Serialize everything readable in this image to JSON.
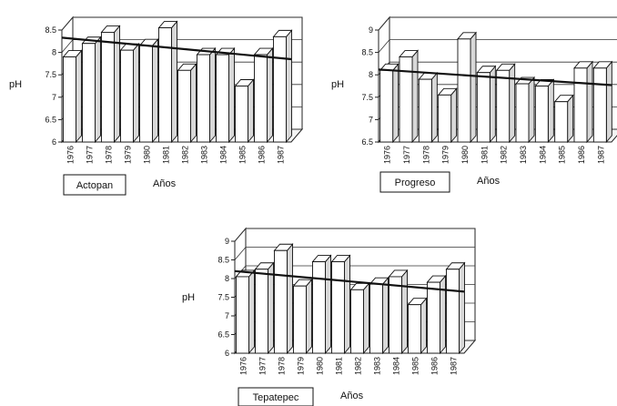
{
  "chart_data": [
    {
      "type": "bar",
      "station": "Actopan",
      "xlabel": "Años",
      "ylabel": "pH",
      "ylim": [
        6,
        8.5
      ],
      "yticks": [
        "6",
        "6.5",
        "7",
        "7.5",
        "8",
        "8.5"
      ],
      "categories": [
        "1976",
        "1977",
        "1978",
        "1979",
        "1980",
        "1981",
        "1982",
        "1983",
        "1984",
        "1985",
        "1986",
        "1987"
      ],
      "values": [
        7.9,
        8.2,
        8.45,
        8.05,
        8.15,
        8.55,
        7.6,
        7.95,
        7.95,
        7.25,
        7.95,
        8.35
      ],
      "trend": [
        8.33,
        7.85
      ],
      "grid": true
    },
    {
      "type": "bar",
      "station": "Progreso",
      "xlabel": "Años",
      "ylabel": "pH",
      "ylim": [
        6.5,
        9
      ],
      "yticks": [
        "6.5",
        "7",
        "7.5",
        "8",
        "8.5",
        "9"
      ],
      "categories": [
        "1976",
        "1977",
        "1978",
        "1979",
        "1980",
        "1981",
        "1982",
        "1983",
        "1984",
        "1985",
        "1986",
        "1987"
      ],
      "values": [
        8.1,
        8.4,
        7.9,
        7.55,
        8.8,
        8.05,
        8.1,
        7.8,
        7.75,
        7.4,
        8.15,
        8.15
      ],
      "trend": [
        8.12,
        7.77
      ],
      "grid": true
    },
    {
      "type": "bar",
      "station": "Tepatepec",
      "xlabel": "Años",
      "ylabel": "pH",
      "ylim": [
        6,
        9
      ],
      "yticks": [
        "6",
        "6.5",
        "7",
        "7.5",
        "8",
        "8.5",
        "9"
      ],
      "categories": [
        "1976",
        "1977",
        "1978",
        "1979",
        "1980",
        "1981",
        "1982",
        "1983",
        "1984",
        "1985",
        "1986",
        "1987"
      ],
      "values": [
        8.05,
        8.25,
        8.75,
        7.8,
        8.45,
        8.45,
        7.7,
        7.85,
        8.05,
        7.3,
        7.9,
        8.25
      ],
      "trend": [
        8.2,
        7.65
      ],
      "grid": true
    }
  ]
}
